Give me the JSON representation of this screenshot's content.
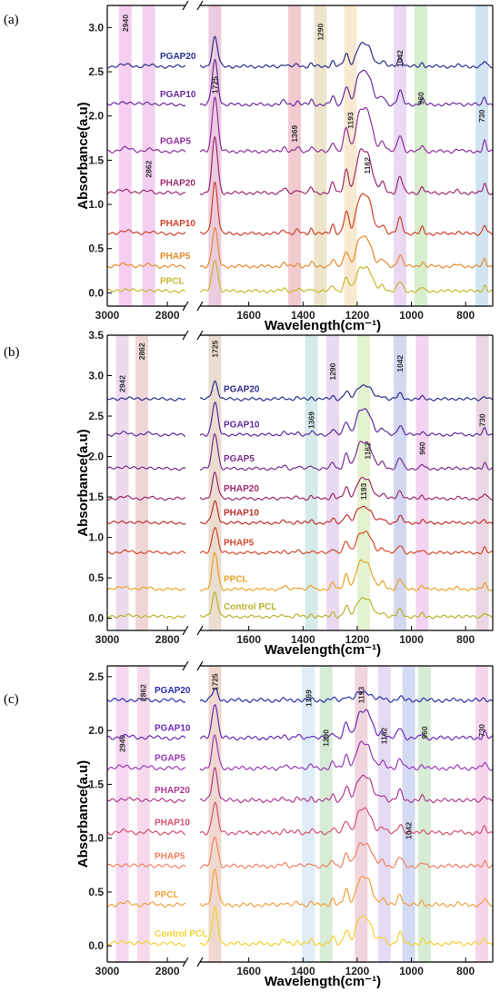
{
  "chart_data": [
    {
      "type": "line",
      "panel_label": "(a)",
      "title": "",
      "xlabel": "Wavelength(cm⁻¹)",
      "ylabel": "Absorbance(a.u)",
      "xlim": [
        3000,
        700
      ],
      "ylim": [
        -0.15,
        3.25
      ],
      "x_axis_break": [
        2740,
        1780
      ],
      "x_ticks": [
        3000,
        2800,
        1600,
        1400,
        1200,
        1000,
        800
      ],
      "y_ticks": [
        "0.0",
        "0.5",
        "1.0",
        "1.5",
        "2.0",
        "2.5",
        "3.0"
      ],
      "y_tick_values": [
        0,
        0.5,
        1.0,
        1.5,
        2.0,
        2.5,
        3.0
      ],
      "grid": false,
      "bands": [
        {
          "x": 2940,
          "label": "2940",
          "color": "#f5c6f0",
          "label_y": 3.05
        },
        {
          "x": 2862,
          "label": "2862",
          "color": "#f1c8ee",
          "label_y": 1.4
        },
        {
          "x": 1725,
          "label": "1725",
          "color": "#e7c3d9",
          "label_y": 2.35
        },
        {
          "x": 1431,
          "label": "1369",
          "color": "#f0c2c8",
          "label_y": 1.8
        },
        {
          "x": 1336,
          "label": "1290",
          "color": "#e9e0c2",
          "label_y": 2.95
        },
        {
          "x": 1225,
          "label": "1193",
          "color": "#f7e6c8",
          "label_y": 1.95
        },
        {
          "x": 1042,
          "label": "1042",
          "color": "#e5d2f1",
          "label_y": 2.65
        },
        {
          "x": 965,
          "label": "960",
          "color": "#cfebc6",
          "label_y": 2.2
        },
        {
          "x": 740,
          "label": "730",
          "color": "#c8dff0",
          "label_y": 2.0
        }
      ],
      "extra_labels": [
        {
          "x": 1162,
          "label": "1162",
          "y": 1.44
        }
      ],
      "series": [
        {
          "name": "PGAP20",
          "offset": 2.56,
          "color": "#2b2f8e",
          "peak": 0.33
        },
        {
          "name": "PGAP10",
          "offset": 2.13,
          "color": "#6a2a9c",
          "peak": 0.5
        },
        {
          "name": "PGAP5",
          "offset": 1.6,
          "color": "#8e2e9e",
          "peak": 0.63
        },
        {
          "name": "PHAP20",
          "offset": 1.13,
          "color": "#9c2a6e",
          "peak": 0.63
        },
        {
          "name": "PHAP10",
          "offset": 0.67,
          "color": "#d0402a",
          "peak": 0.58
        },
        {
          "name": "PHAP5",
          "offset": 0.3,
          "color": "#e58a2e",
          "peak": 0.43
        },
        {
          "name": "PPCL",
          "offset": 0.02,
          "color": "#c6b62a",
          "peak": 0.36
        }
      ]
    },
    {
      "type": "line",
      "panel_label": "(b)",
      "title": "",
      "xlabel": "Wavelength(cm⁻¹)",
      "ylabel": "Absorbance(a.u)",
      "xlim": [
        3000,
        700
      ],
      "ylim": [
        -0.15,
        3.5
      ],
      "x_axis_break": [
        2740,
        1780
      ],
      "x_ticks": [
        3000,
        2800,
        1600,
        1400,
        1200,
        1000,
        800
      ],
      "y_ticks": [
        "0.0",
        "0.5",
        "1.0",
        "1.5",
        "2.0",
        "2.5",
        "3.0",
        "3.5"
      ],
      "y_tick_values": [
        0,
        0.5,
        1.0,
        1.5,
        2.0,
        2.5,
        3.0,
        3.5
      ],
      "grid": false,
      "bands": [
        {
          "x": 2950,
          "label": "2942",
          "color": "#ead4ea",
          "label_y": 2.9
        },
        {
          "x": 2885,
          "label": "2862",
          "color": "#ebcfd0",
          "label_y": 3.3
        },
        {
          "x": 1725,
          "label": "1725",
          "color": "#e8d6c8",
          "label_y": 3.33
        },
        {
          "x": 1369,
          "label": "1369",
          "color": "#cfe6e6",
          "label_y": 2.45
        },
        {
          "x": 1290,
          "label": "1290",
          "color": "#e6d3ef",
          "label_y": 3.05
        },
        {
          "x": 1176,
          "label": "1193",
          "color": "#e0f0c8",
          "label_y": 1.57
        },
        {
          "x": 1042,
          "label": "1042",
          "color": "#cbd0ef",
          "label_y": 3.15
        },
        {
          "x": 960,
          "label": "960",
          "color": "#f2cdf0",
          "label_y": 2.1
        },
        {
          "x": 738,
          "label": "730",
          "color": "#e6d0de",
          "label_y": 2.45
        }
      ],
      "extra_labels": [
        {
          "x": 1162,
          "label": "1162",
          "y": 2.07
        }
      ],
      "series": [
        {
          "name": "PGAP20",
          "offset": 2.71,
          "color": "#2b2f8e",
          "peak": 0.22
        },
        {
          "name": "PGAP10",
          "offset": 2.27,
          "color": "#5a2b9c",
          "peak": 0.4
        },
        {
          "name": "PGAP5",
          "offset": 1.85,
          "color": "#7a2c8f",
          "peak": 0.44
        },
        {
          "name": "PHAP20",
          "offset": 1.48,
          "color": "#9c2a6a",
          "peak": 0.32
        },
        {
          "name": "PHAP10",
          "offset": 1.18,
          "color": "#c0302f",
          "peak": 0.26
        },
        {
          "name": "PHAP5",
          "offset": 0.81,
          "color": "#d24a2a",
          "peak": 0.33
        },
        {
          "name": "PPCL",
          "offset": 0.36,
          "color": "#e8a224",
          "peak": 0.45
        },
        {
          "name": "Control PCL",
          "offset": 0.02,
          "color": "#b8b32a",
          "peak": 0.3
        }
      ]
    },
    {
      "type": "line",
      "panel_label": "(c)",
      "title": "",
      "xlabel": "Wavelength(cm⁻¹)",
      "ylabel": "Absorbance(a.u)",
      "xlim": [
        3000,
        700
      ],
      "ylim": [
        -0.15,
        2.6
      ],
      "x_axis_break": [
        2740,
        1780
      ],
      "x_ticks": [
        3000,
        2800,
        1600,
        1400,
        1200,
        1000,
        800
      ],
      "y_ticks": [
        "0.0",
        "0.5",
        "1.0",
        "1.5",
        "2.0",
        "2.5"
      ],
      "y_tick_values": [
        0,
        0.5,
        1.0,
        1.5,
        2.0,
        2.5
      ],
      "grid": false,
      "bands": [
        {
          "x": 2950,
          "label": "2940",
          "color": "#f3d0ee",
          "label_y": 1.88
        },
        {
          "x": 2880,
          "label": "2862",
          "color": "#f4d4e8",
          "label_y": 2.35
        },
        {
          "x": 1725,
          "label": "1725",
          "color": "#ecd2c6",
          "label_y": 2.45
        },
        {
          "x": 1380,
          "label": "1369",
          "color": "#d8eaf6",
          "label_y": 2.3
        },
        {
          "x": 1315,
          "label": "1290",
          "color": "#cfe9cf",
          "label_y": 1.93
        },
        {
          "x": 1185,
          "label": "1193",
          "color": "#edccd8",
          "label_y": 2.33
        },
        {
          "x": 1100,
          "label": "1162",
          "color": "#e0d3f2",
          "label_y": 1.95
        },
        {
          "x": 1010,
          "label": "1042",
          "color": "#cdd4f0",
          "label_y": 1.07
        },
        {
          "x": 952,
          "label": "960",
          "color": "#cfe9cc",
          "label_y": 1.98
        },
        {
          "x": 740,
          "label": "730",
          "color": "#f5cfe8",
          "label_y": 2.0
        }
      ],
      "extra_labels": [],
      "series": [
        {
          "name": "PGAP20",
          "offset": 2.28,
          "color": "#2b2faa",
          "peak": 0.1
        },
        {
          "name": "PGAP10",
          "offset": 1.93,
          "color": "#6a2ab8",
          "peak": 0.33
        },
        {
          "name": "PGAP5",
          "offset": 1.65,
          "color": "#9a38b8",
          "peak": 0.3
        },
        {
          "name": "PHAP20",
          "offset": 1.35,
          "color": "#b03a90",
          "peak": 0.3
        },
        {
          "name": "PHAP10",
          "offset": 1.05,
          "color": "#d8506e",
          "peak": 0.28
        },
        {
          "name": "PHAP5",
          "offset": 0.74,
          "color": "#f08060",
          "peak": 0.28
        },
        {
          "name": "PPCL",
          "offset": 0.38,
          "color": "#f2a040",
          "peak": 0.33
        },
        {
          "name": "Control PCL",
          "offset": 0.02,
          "color": "#f2d030",
          "peak": 0.33
        }
      ]
    }
  ]
}
